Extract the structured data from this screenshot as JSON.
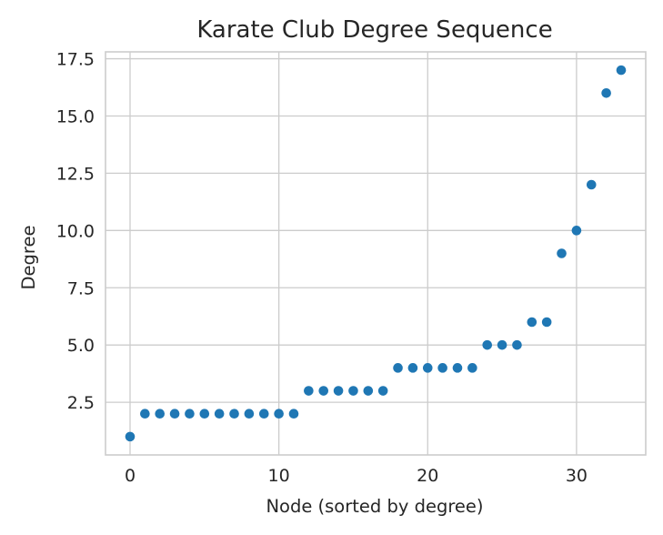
{
  "chart_data": {
    "type": "scatter",
    "title": "Karate Club Degree Sequence",
    "xlabel": "Node (sorted by degree)",
    "ylabel": "Degree",
    "xlim": [
      -1.65,
      34.65
    ],
    "ylim": [
      0.2,
      17.8
    ],
    "xticks": [
      0,
      10,
      20,
      30
    ],
    "yticks": [
      2.5,
      5.0,
      7.5,
      10.0,
      12.5,
      15.0,
      17.5
    ],
    "ytick_labels": [
      "2.5",
      "5.0",
      "7.5",
      "10.0",
      "12.5",
      "15.0",
      "17.5"
    ],
    "grid": true,
    "legend": "none",
    "color": "#1f77b4",
    "x": [
      0,
      1,
      2,
      3,
      4,
      5,
      6,
      7,
      8,
      9,
      10,
      11,
      12,
      13,
      14,
      15,
      16,
      17,
      18,
      19,
      20,
      21,
      22,
      23,
      24,
      25,
      26,
      27,
      28,
      29,
      30,
      31,
      32,
      33
    ],
    "y": [
      1,
      2,
      2,
      2,
      2,
      2,
      2,
      2,
      2,
      2,
      2,
      2,
      3,
      3,
      3,
      3,
      3,
      3,
      4,
      4,
      4,
      4,
      4,
      4,
      5,
      5,
      5,
      6,
      6,
      9,
      10,
      12,
      16,
      17
    ]
  }
}
